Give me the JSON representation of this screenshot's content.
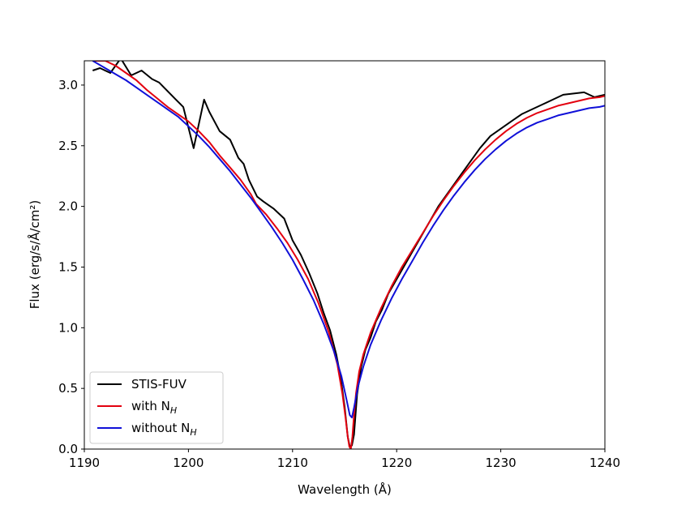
{
  "chart_data": {
    "type": "line",
    "xlabel": "Wavelength (Å)",
    "ylabel": "Flux (erg/s/Å/cm²)",
    "xlim": [
      1190,
      1240
    ],
    "ylim": [
      0.0,
      3.2
    ],
    "x_ticks": [
      "1190",
      "1200",
      "1210",
      "1220",
      "1230",
      "1240"
    ],
    "y_ticks": [
      "0.0",
      "0.5",
      "1.0",
      "1.5",
      "2.0",
      "2.5",
      "3.0"
    ],
    "grid": false,
    "legend_position": "lower-left",
    "series": [
      {
        "name": "STIS-FUV",
        "color": "#000000",
        "x": [
          1190.8,
          1191.5,
          1192.5,
          1193.5,
          1194.5,
          1195.5,
          1196.5,
          1197.2,
          1198.0,
          1198.8,
          1199.5,
          1200.5,
          1201.5,
          1202.0,
          1203.0,
          1204.0,
          1204.8,
          1205.3,
          1205.8,
          1206.2,
          1206.6,
          1207.2,
          1208.2,
          1209.2,
          1210.0,
          1210.8,
          1211.6,
          1212.4,
          1213.0,
          1213.6,
          1214.2,
          1214.6,
          1215.0,
          1215.3,
          1215.5,
          1215.7,
          1215.9,
          1216.2,
          1216.6,
          1217.0,
          1217.5,
          1218.0,
          1218.6,
          1219.2,
          1220.0,
          1221.0,
          1222.0,
          1223.0,
          1224.0,
          1225.0,
          1226.0,
          1227.0,
          1228.0,
          1229.0,
          1230.0,
          1231.0,
          1232.0,
          1233.0,
          1234.0,
          1235.0,
          1236.0,
          1237.0,
          1238.0,
          1239.0,
          1240.0
        ],
        "y": [
          3.12,
          3.14,
          3.1,
          3.22,
          3.08,
          3.12,
          3.05,
          3.02,
          2.95,
          2.88,
          2.82,
          2.48,
          2.88,
          2.78,
          2.62,
          2.55,
          2.4,
          2.35,
          2.22,
          2.15,
          2.08,
          2.04,
          1.98,
          1.9,
          1.72,
          1.6,
          1.45,
          1.28,
          1.12,
          0.98,
          0.78,
          0.6,
          0.35,
          0.1,
          0.02,
          0.03,
          0.12,
          0.45,
          0.68,
          0.82,
          0.92,
          1.05,
          1.15,
          1.28,
          1.4,
          1.55,
          1.7,
          1.85,
          2.0,
          2.12,
          2.24,
          2.36,
          2.48,
          2.58,
          2.64,
          2.7,
          2.76,
          2.8,
          2.84,
          2.88,
          2.92,
          2.93,
          2.94,
          2.9,
          2.92
        ]
      },
      {
        "name": "with N_H",
        "color": "#e3000f",
        "x": [
          1190.8,
          1192.0,
          1193.0,
          1194.0,
          1195.0,
          1196.0,
          1197.0,
          1198.0,
          1199.0,
          1200.0,
          1201.0,
          1202.0,
          1203.0,
          1204.0,
          1205.0,
          1206.0,
          1206.5,
          1207.5,
          1208.5,
          1209.5,
          1210.5,
          1211.5,
          1212.5,
          1213.5,
          1214.3,
          1214.8,
          1215.1,
          1215.3,
          1215.45,
          1215.6,
          1215.75,
          1215.9,
          1216.1,
          1216.4,
          1216.8,
          1217.5,
          1218.5,
          1219.5,
          1220.5,
          1221.5,
          1222.5,
          1223.5,
          1224.5,
          1225.5,
          1226.5,
          1227.5,
          1228.5,
          1229.5,
          1230.5,
          1231.5,
          1232.5,
          1233.5,
          1234.5,
          1235.5,
          1236.5,
          1237.5,
          1238.5,
          1239.5,
          1240.0
        ],
        "y": [
          3.2,
          3.2,
          3.16,
          3.1,
          3.04,
          2.96,
          2.89,
          2.82,
          2.76,
          2.7,
          2.62,
          2.53,
          2.42,
          2.32,
          2.22,
          2.1,
          2.02,
          1.93,
          1.82,
          1.7,
          1.56,
          1.4,
          1.2,
          0.96,
          0.7,
          0.45,
          0.25,
          0.1,
          0.02,
          0.0,
          0.1,
          0.28,
          0.46,
          0.64,
          0.78,
          0.96,
          1.16,
          1.34,
          1.5,
          1.64,
          1.78,
          1.92,
          2.05,
          2.17,
          2.28,
          2.38,
          2.47,
          2.55,
          2.62,
          2.68,
          2.73,
          2.77,
          2.8,
          2.83,
          2.85,
          2.87,
          2.89,
          2.9,
          2.91
        ]
      },
      {
        "name": "without N_H",
        "color": "#1010d8",
        "x": [
          1190.8,
          1192.0,
          1193.0,
          1194.0,
          1195.0,
          1196.0,
          1197.0,
          1198.0,
          1199.0,
          1200.0,
          1201.0,
          1202.0,
          1203.0,
          1204.0,
          1205.0,
          1206.0,
          1207.0,
          1208.0,
          1209.0,
          1210.0,
          1211.0,
          1212.0,
          1213.0,
          1214.0,
          1214.7,
          1215.2,
          1215.5,
          1215.7,
          1215.9,
          1216.3,
          1216.8,
          1217.5,
          1218.5,
          1219.5,
          1220.5,
          1221.5,
          1222.5,
          1223.5,
          1224.5,
          1225.5,
          1226.5,
          1227.5,
          1228.5,
          1229.5,
          1230.5,
          1231.5,
          1232.5,
          1233.5,
          1234.5,
          1235.5,
          1236.5,
          1237.5,
          1238.5,
          1239.5,
          1240.0
        ],
        "y": [
          3.2,
          3.14,
          3.09,
          3.04,
          2.98,
          2.92,
          2.86,
          2.8,
          2.74,
          2.66,
          2.58,
          2.49,
          2.39,
          2.29,
          2.18,
          2.07,
          1.95,
          1.83,
          1.7,
          1.56,
          1.4,
          1.23,
          1.03,
          0.8,
          0.6,
          0.4,
          0.28,
          0.26,
          0.34,
          0.52,
          0.68,
          0.86,
          1.06,
          1.24,
          1.4,
          1.55,
          1.7,
          1.84,
          1.97,
          2.09,
          2.2,
          2.3,
          2.39,
          2.47,
          2.54,
          2.6,
          2.65,
          2.69,
          2.72,
          2.75,
          2.77,
          2.79,
          2.81,
          2.82,
          2.83
        ]
      }
    ]
  },
  "legend": {
    "items": [
      {
        "label": "STIS-FUV",
        "color": "#000000"
      },
      {
        "label": "with N",
        "sub": "H",
        "color": "#e3000f"
      },
      {
        "label": "without N",
        "sub": "H",
        "color": "#1010d8"
      }
    ]
  }
}
